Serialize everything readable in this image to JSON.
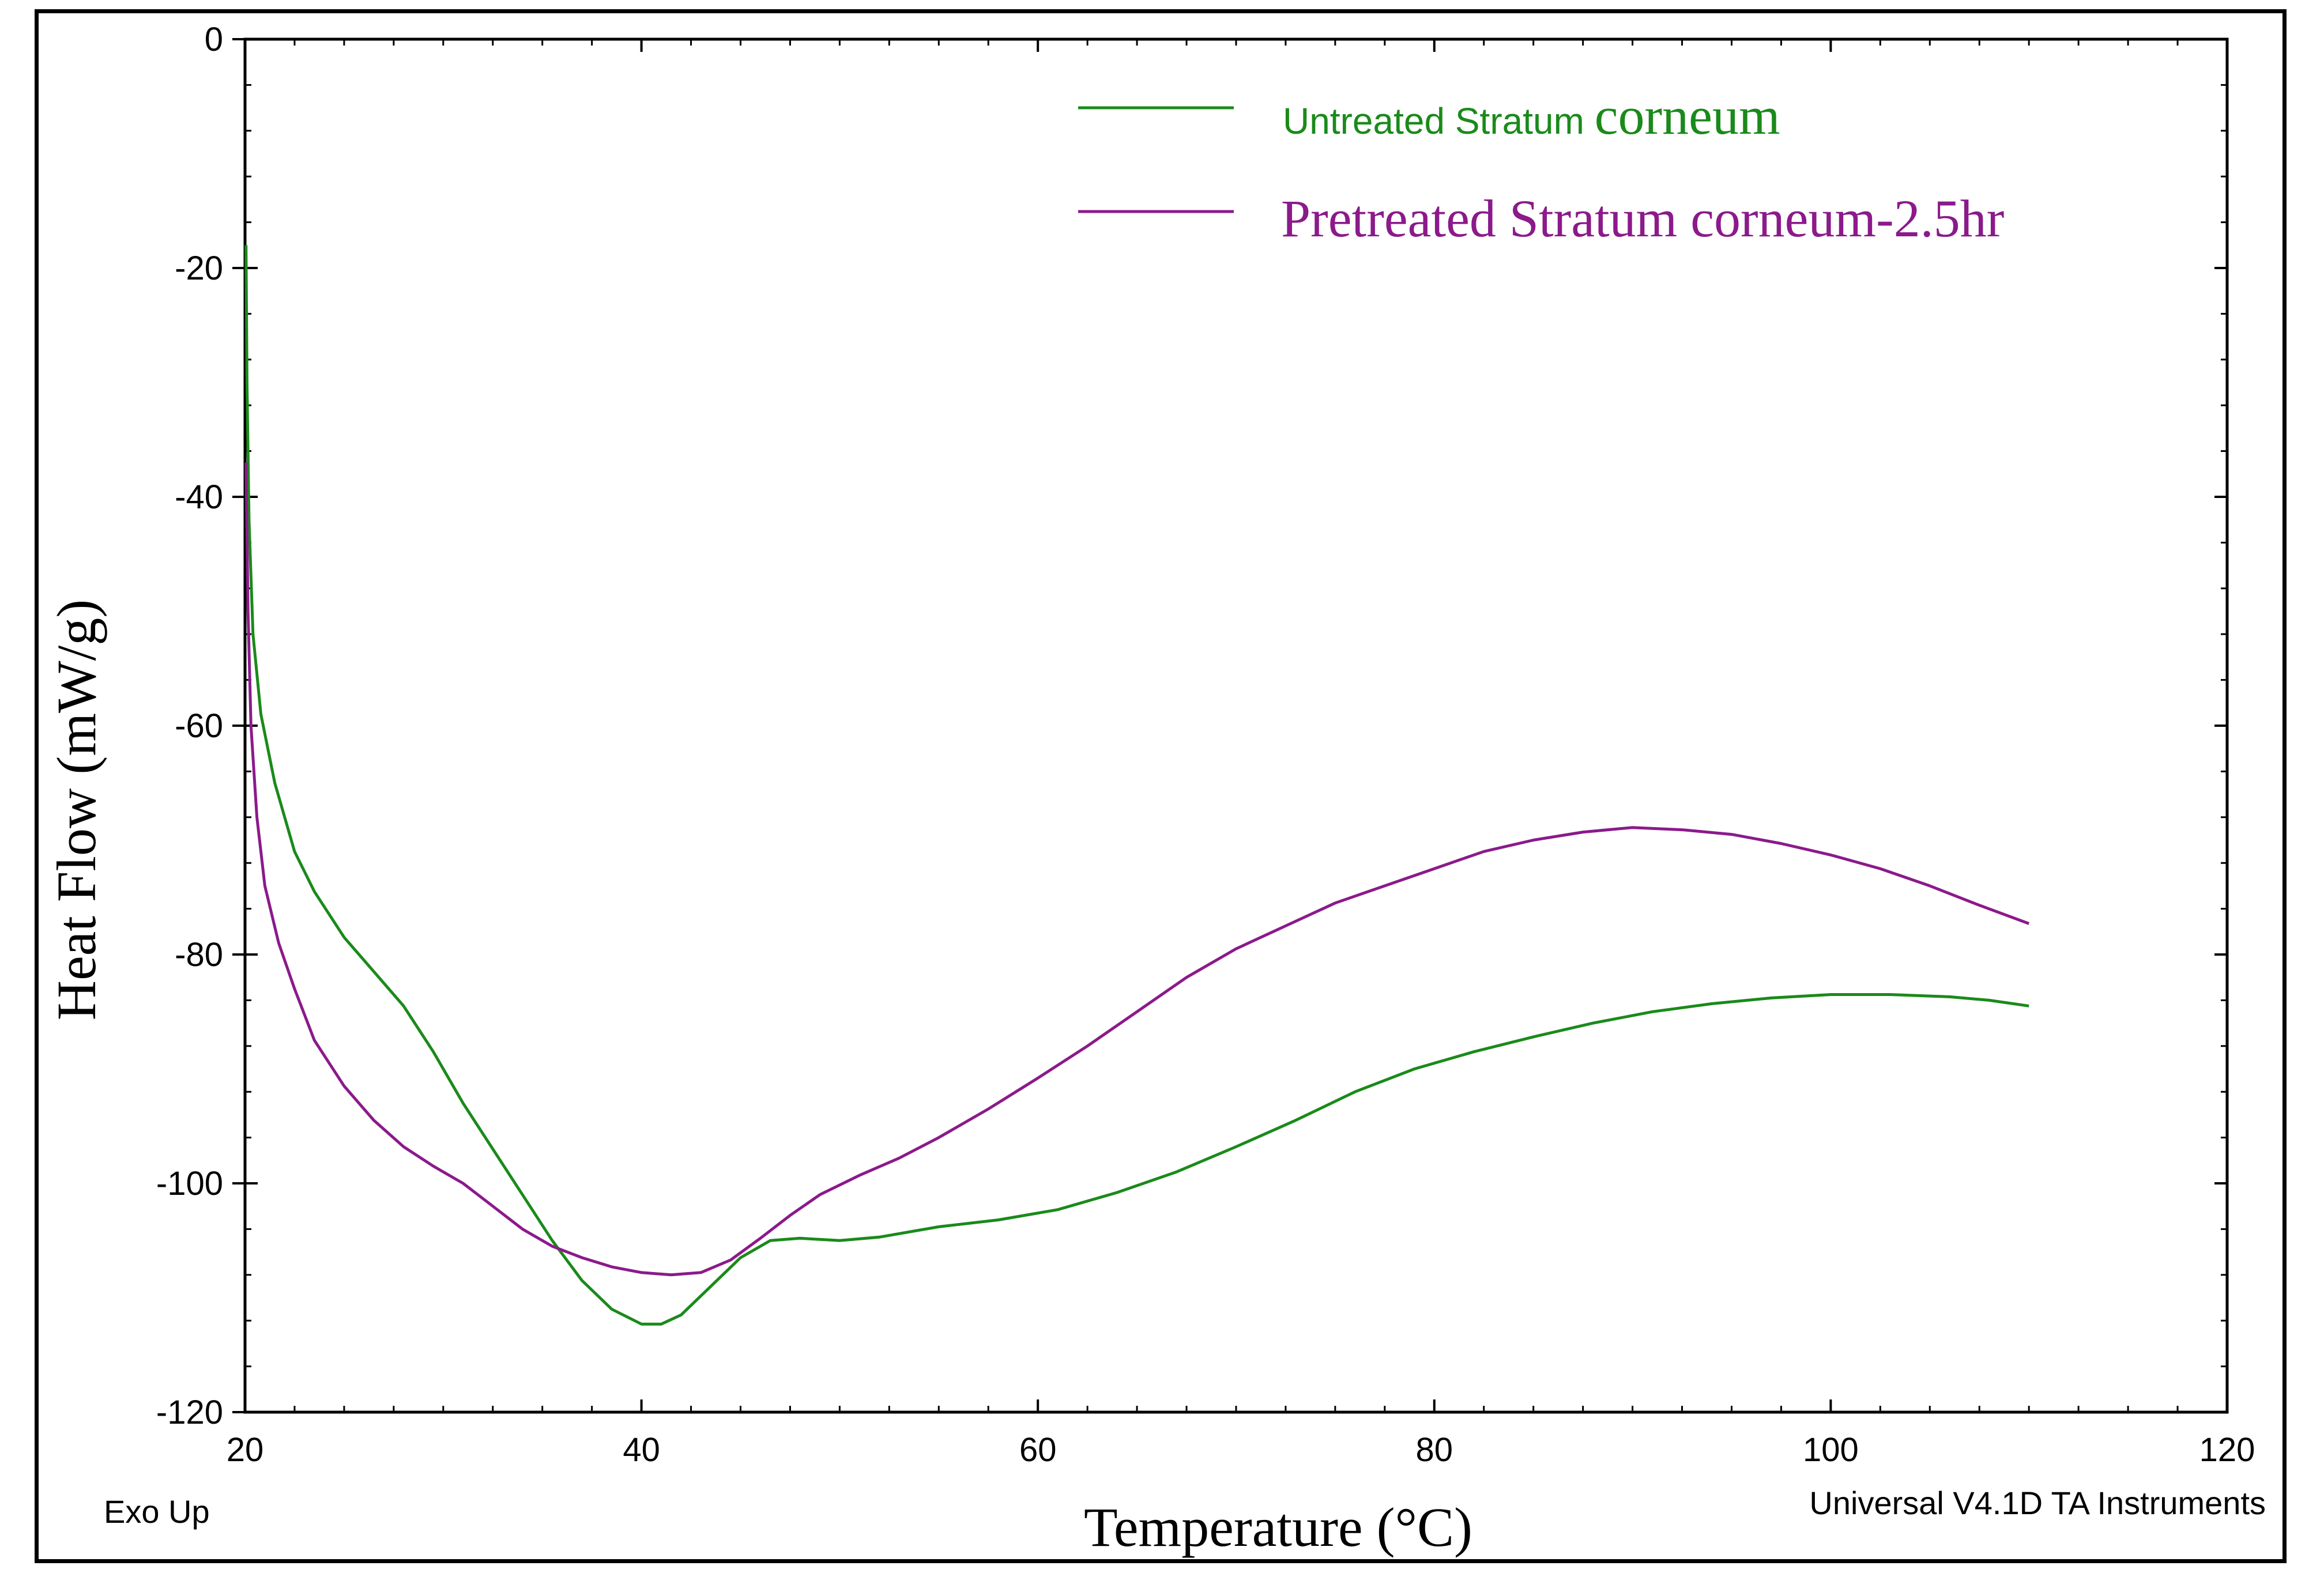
{
  "chart_data": {
    "type": "line",
    "xlabel": "Temperature (°C)",
    "ylabel": "Heat Flow (mW/g)",
    "xlim": [
      20,
      120
    ],
    "ylim": [
      -120,
      0
    ],
    "x_ticks": [
      20,
      40,
      60,
      80,
      100,
      120
    ],
    "y_ticks": [
      0,
      -20,
      -40,
      -60,
      -80,
      -100,
      -120
    ],
    "x_tick_labels": [
      "20",
      "40",
      "60",
      "80",
      "100",
      "120"
    ],
    "y_tick_labels": [
      "0",
      "-20",
      "-40",
      "-60",
      "-80",
      "-100",
      "-120"
    ],
    "footer_left": "Exo Up",
    "footer_right": "Universal V4.1D TA Instruments",
    "legend": [
      {
        "label_part1": "Untreated Stratum ",
        "label_part2": "corneum",
        "color": "#1a8a1a"
      },
      {
        "label_part1": "",
        "label_part2": "Pretreated Stratum corneum-2.5hr",
        "color": "#8b1a8b"
      }
    ],
    "series": [
      {
        "name": "Untreated Stratum corneum",
        "color": "#1a8a1a",
        "points": [
          [
            20.05,
            -18
          ],
          [
            20.1,
            -30
          ],
          [
            20.2,
            -42
          ],
          [
            20.4,
            -52
          ],
          [
            20.8,
            -59
          ],
          [
            21.5,
            -65
          ],
          [
            22.5,
            -71
          ],
          [
            23.5,
            -74.5
          ],
          [
            25,
            -78.5
          ],
          [
            26.5,
            -81.5
          ],
          [
            28,
            -84.5
          ],
          [
            29.5,
            -88.5
          ],
          [
            31,
            -93
          ],
          [
            32.5,
            -97
          ],
          [
            34,
            -101
          ],
          [
            35.5,
            -105
          ],
          [
            37,
            -108.5
          ],
          [
            38.5,
            -111
          ],
          [
            40,
            -112.3
          ],
          [
            41,
            -112.3
          ],
          [
            42,
            -111.5
          ],
          [
            43.5,
            -109
          ],
          [
            45,
            -106.5
          ],
          [
            46.5,
            -105
          ],
          [
            48,
            -104.8
          ],
          [
            50,
            -105
          ],
          [
            52,
            -104.7
          ],
          [
            55,
            -103.8
          ],
          [
            58,
            -103.2
          ],
          [
            61,
            -102.3
          ],
          [
            64,
            -100.8
          ],
          [
            67,
            -99
          ],
          [
            70,
            -96.8
          ],
          [
            73,
            -94.5
          ],
          [
            76,
            -92
          ],
          [
            79,
            -90
          ],
          [
            82,
            -88.5
          ],
          [
            85,
            -87.2
          ],
          [
            88,
            -86
          ],
          [
            91,
            -85
          ],
          [
            94,
            -84.3
          ],
          [
            97,
            -83.8
          ],
          [
            100,
            -83.5
          ],
          [
            103,
            -83.5
          ],
          [
            106,
            -83.7
          ],
          [
            108,
            -84
          ],
          [
            110,
            -84.5
          ]
        ]
      },
      {
        "name": "Pretreated Stratum corneum-2.5hr",
        "color": "#8b1a8b",
        "points": [
          [
            20.05,
            -37
          ],
          [
            20.15,
            -50
          ],
          [
            20.3,
            -60
          ],
          [
            20.6,
            -68
          ],
          [
            21,
            -74
          ],
          [
            21.7,
            -79
          ],
          [
            22.5,
            -83
          ],
          [
            23.5,
            -87.5
          ],
          [
            25,
            -91.5
          ],
          [
            26.5,
            -94.5
          ],
          [
            28,
            -96.8
          ],
          [
            29.5,
            -98.5
          ],
          [
            31,
            -100
          ],
          [
            32.5,
            -102
          ],
          [
            34,
            -104
          ],
          [
            35.5,
            -105.5
          ],
          [
            37,
            -106.5
          ],
          [
            38.5,
            -107.3
          ],
          [
            40,
            -107.8
          ],
          [
            41.5,
            -108
          ],
          [
            43,
            -107.8
          ],
          [
            44.5,
            -106.7
          ],
          [
            46,
            -104.8
          ],
          [
            47.5,
            -102.8
          ],
          [
            49,
            -101
          ],
          [
            51,
            -99.3
          ],
          [
            53,
            -97.8
          ],
          [
            55,
            -96
          ],
          [
            57.5,
            -93.5
          ],
          [
            60,
            -90.8
          ],
          [
            62.5,
            -88
          ],
          [
            65,
            -85
          ],
          [
            67.5,
            -82
          ],
          [
            70,
            -79.5
          ],
          [
            72.5,
            -77.5
          ],
          [
            75,
            -75.5
          ],
          [
            77.5,
            -74
          ],
          [
            80,
            -72.5
          ],
          [
            82.5,
            -71
          ],
          [
            85,
            -70
          ],
          [
            87.5,
            -69.3
          ],
          [
            90,
            -68.9
          ],
          [
            92.5,
            -69.1
          ],
          [
            95,
            -69.5
          ],
          [
            97.5,
            -70.3
          ],
          [
            100,
            -71.3
          ],
          [
            102.5,
            -72.5
          ],
          [
            105,
            -74
          ],
          [
            107.5,
            -75.7
          ],
          [
            110,
            -77.3
          ]
        ]
      }
    ]
  }
}
